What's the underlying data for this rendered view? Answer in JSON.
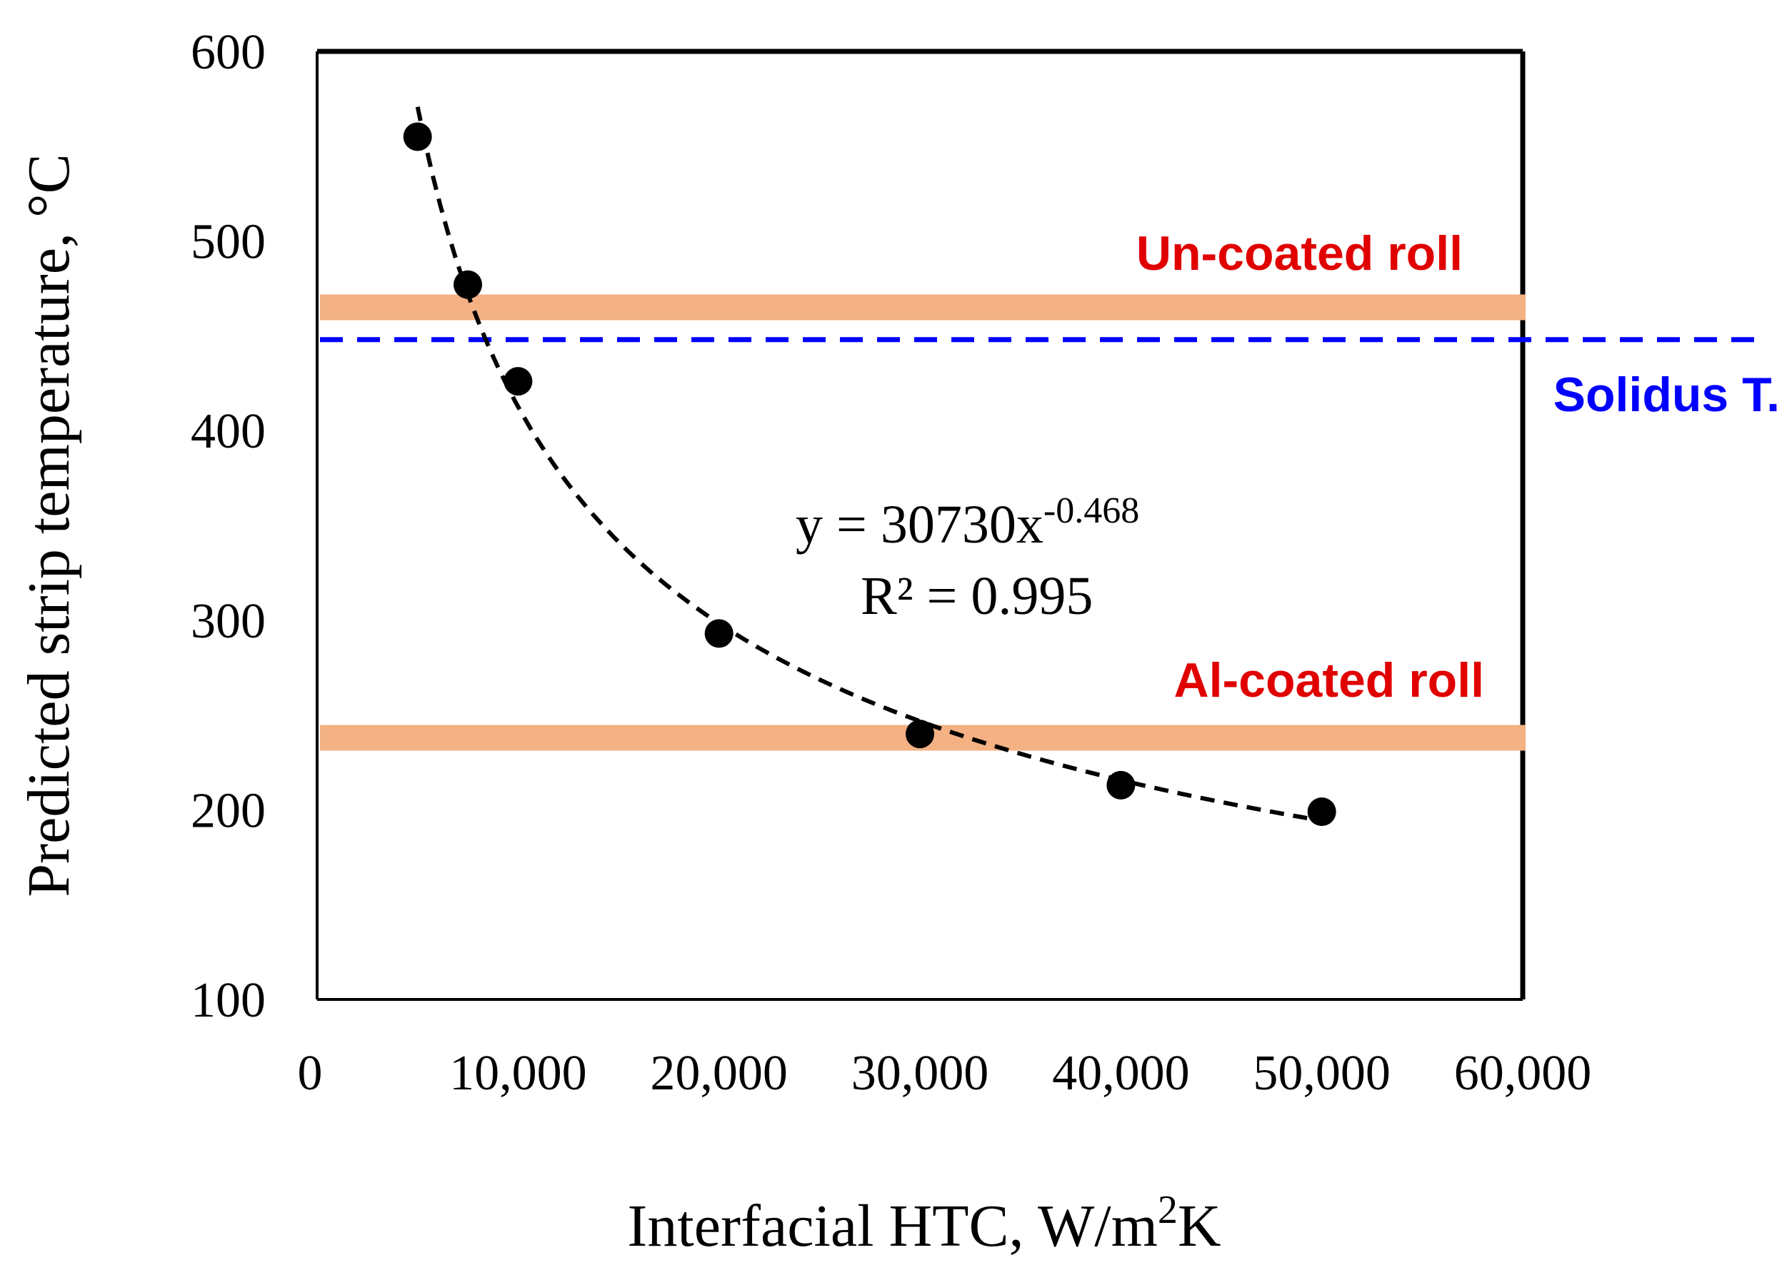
{
  "chart_data": {
    "type": "scatter",
    "title": "",
    "xlabel": {
      "text": "Interfacial HTC, W/m",
      "sup": "2",
      "suffix": "K"
    },
    "ylabel": "Predicted strip temperature, °C",
    "xlim": [
      0,
      60000
    ],
    "ylim": [
      100,
      600
    ],
    "xticks": [
      0,
      10000,
      20000,
      30000,
      40000,
      50000,
      60000
    ],
    "xtick_labels": [
      "0",
      "10,000",
      "20,000",
      "30,000",
      "40,000",
      "50,000",
      "60,000"
    ],
    "yticks": [
      100,
      200,
      300,
      400,
      500,
      600
    ],
    "ytick_labels": [
      "100",
      "200",
      "300",
      "400",
      "500",
      "600"
    ],
    "grid": false,
    "series": [
      {
        "name": "Predicted strip temperature",
        "x": [
          5000,
          7500,
          10000,
          20000,
          30000,
          40000,
          50000
        ],
        "y": [
          555,
          477,
          426,
          293,
          240,
          213,
          199
        ],
        "marker": "circle",
        "color": "#000000"
      }
    ],
    "trendline": {
      "type": "power",
      "a": 30730,
      "b": -0.468,
      "x_range": [
        5000,
        50000
      ],
      "equation_prefix": "y = 30730x",
      "equation_exponent": "-0.468",
      "r_squared_text": "R² = 0.995",
      "color": "#000000",
      "style": "dashed"
    },
    "reference_lines": [
      {
        "label": "Un-coated roll",
        "y": 465,
        "color": "#F4B183",
        "label_color": "#E00000",
        "style": "band"
      },
      {
        "label": "Solidus T.",
        "y": 448,
        "color": "#0000FF",
        "label_color": "#0000FF",
        "style": "dashed"
      },
      {
        "label": "Al-coated roll",
        "y": 238,
        "color": "#F4B183",
        "label_color": "#E00000",
        "style": "band"
      }
    ]
  }
}
